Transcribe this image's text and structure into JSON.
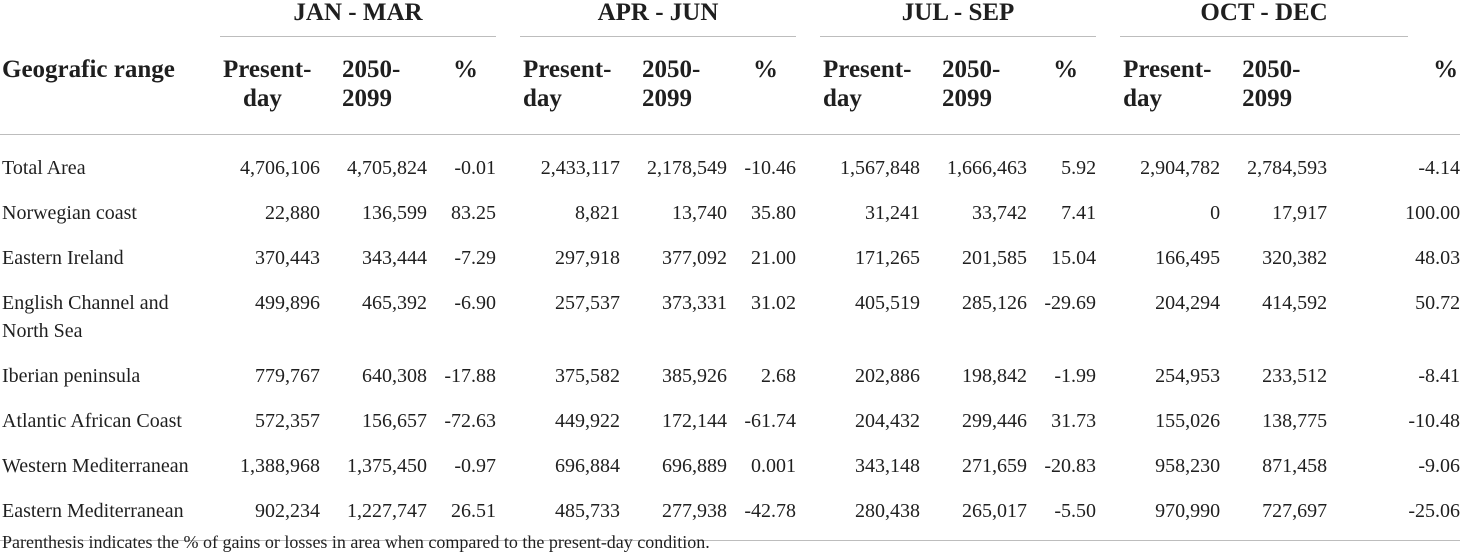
{
  "table": {
    "range_header": "Geografic range",
    "seasons": [
      "JAN - MAR",
      "APR - JUN",
      "JUL - SEP",
      "OCT - DEC"
    ],
    "sub_headers": {
      "present_line1": "Present-",
      "present_line2": "day",
      "future_line1": "2050-",
      "future_line2": "2099",
      "pct": "%"
    },
    "rows": [
      {
        "name": "Total Area",
        "values": [
          "4,706,106",
          "4,705,824",
          "-0.01",
          "2,433,117",
          "2,178,549",
          "-10.46",
          "1,567,848",
          "1,666,463",
          "5.92",
          "2,904,782",
          "2,784,593",
          "-4.14"
        ]
      },
      {
        "name": "Norwegian coast",
        "values": [
          "22,880",
          "136,599",
          "83.25",
          "8,821",
          "13,740",
          "35.80",
          "31,241",
          "33,742",
          "7.41",
          "0",
          "17,917",
          "100.00"
        ]
      },
      {
        "name": "Eastern Ireland",
        "values": [
          "370,443",
          "343,444",
          "-7.29",
          "297,918",
          "377,092",
          "21.00",
          "171,265",
          "201,585",
          "15.04",
          "166,495",
          "320,382",
          "48.03"
        ]
      },
      {
        "name": "English Channel and North Sea",
        "values": [
          "499,896",
          "465,392",
          "-6.90",
          "257,537",
          "373,331",
          "31.02",
          "405,519",
          "285,126",
          "-29.69",
          "204,294",
          "414,592",
          "50.72"
        ]
      },
      {
        "name": "Iberian peninsula",
        "values": [
          "779,767",
          "640,308",
          "-17.88",
          "375,582",
          "385,926",
          "2.68",
          "202,886",
          "198,842",
          "-1.99",
          "254,953",
          "233,512",
          "-8.41"
        ]
      },
      {
        "name": "Atlantic African Coast",
        "values": [
          "572,357",
          "156,657",
          "-72.63",
          "449,922",
          "172,144",
          "-61.74",
          "204,432",
          "299,446",
          "31.73",
          "155,026",
          "138,775",
          "-10.48"
        ]
      },
      {
        "name": "Western Mediterranean",
        "values": [
          "1,388,968",
          "1,375,450",
          "-0.97",
          "696,884",
          "696,889",
          "0.001",
          "343,148",
          "271,659",
          "-20.83",
          "958,230",
          "871,458",
          "-9.06"
        ]
      },
      {
        "name": "Eastern Mediterranean",
        "values": [
          "902,234",
          "1,227,747",
          "26.51",
          "485,733",
          "277,938",
          "-42.78",
          "280,438",
          "265,017",
          "-5.50",
          "970,990",
          "727,697",
          "-25.06"
        ]
      }
    ],
    "footnote": "Parenthesis indicates the % of gains or losses in area when compared to the present-day condition."
  }
}
